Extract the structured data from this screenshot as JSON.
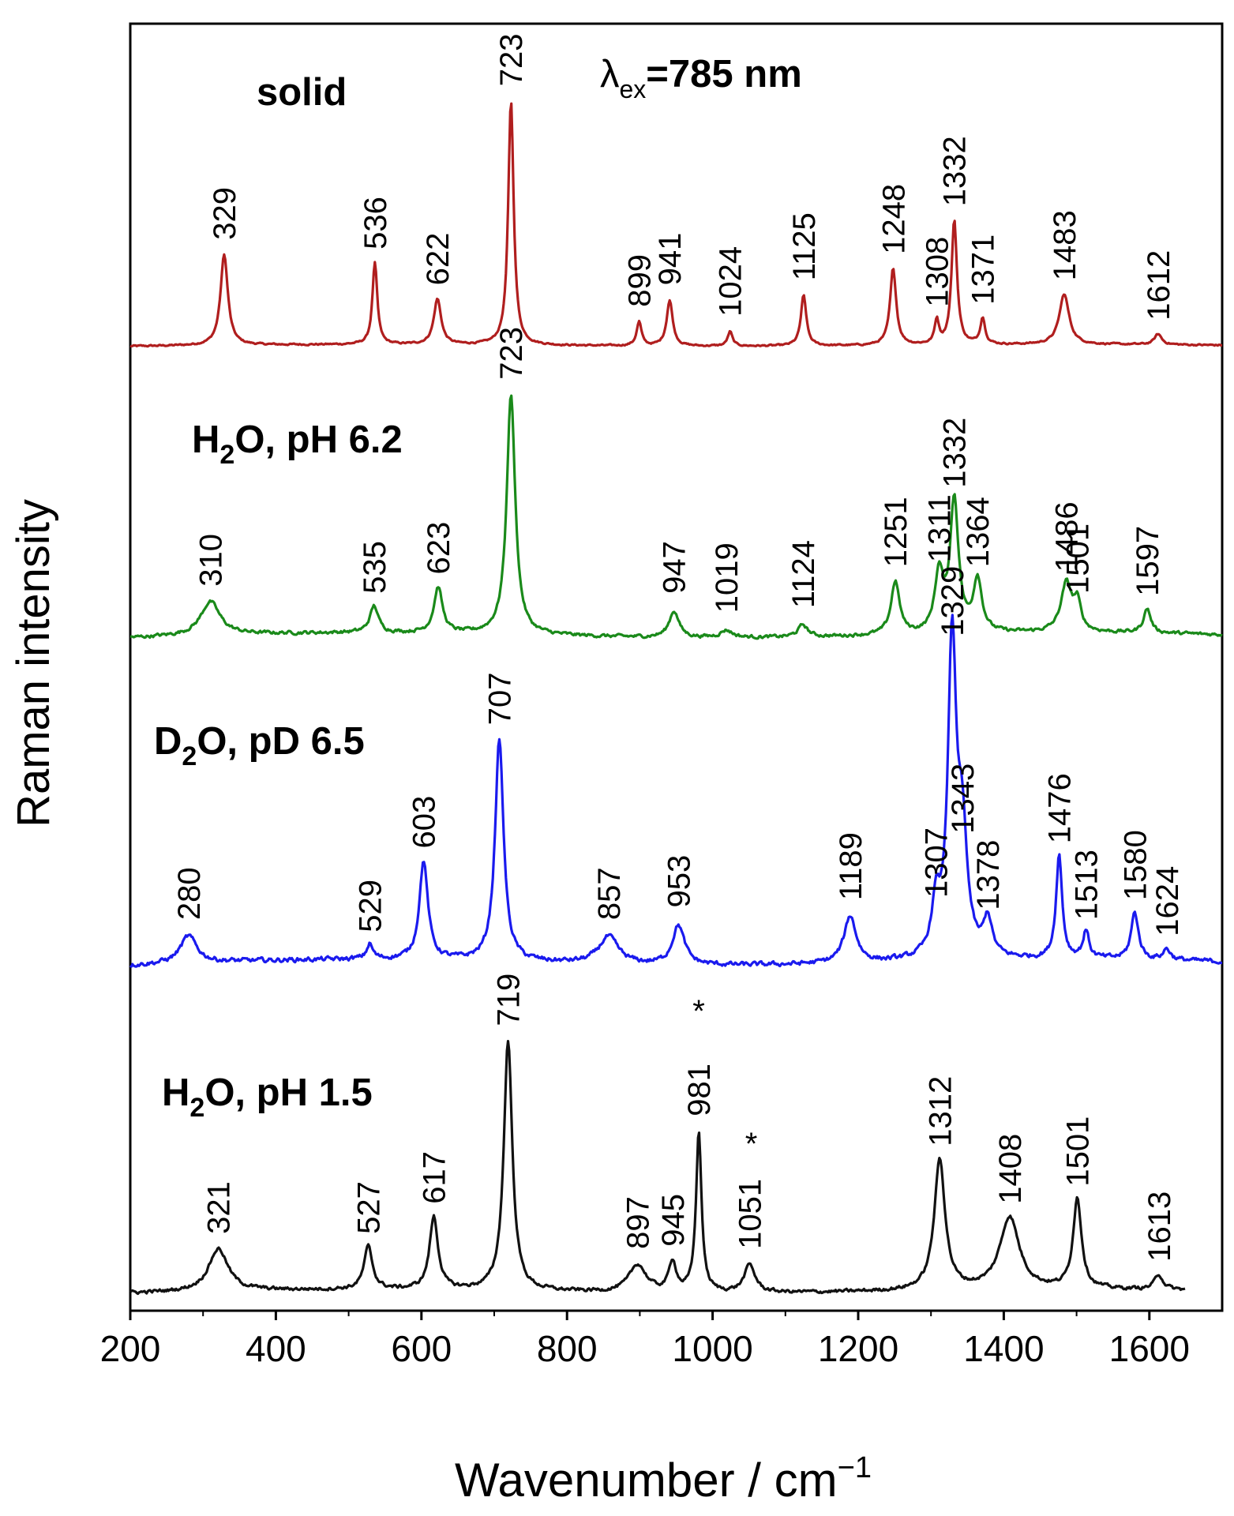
{
  "chart_data": {
    "type": "line",
    "title": "",
    "xlabel": "Wavenumber / cm",
    "xlabel_superscript": "−1",
    "ylabel": "Raman intensity",
    "xlim": [
      200,
      1700
    ],
    "xticks": [
      200,
      400,
      600,
      800,
      1000,
      1200,
      1400,
      1600
    ],
    "excitation": {
      "prefix": "λ",
      "subscript": "ex",
      "value": "=785 nm"
    },
    "series": [
      {
        "name": "solid",
        "label_parts": [
          "solid"
        ],
        "color": "#b01e1e",
        "xmin": 200,
        "xmax": 1700,
        "baseline_level": 0.1,
        "intensity_max": 5.3,
        "noise": 0.03,
        "peaks": [
          {
            "x": 329,
            "h": 1.9,
            "w": 6,
            "label": "329"
          },
          {
            "x": 536,
            "h": 1.7,
            "w": 4,
            "label": "536"
          },
          {
            "x": 622,
            "h": 0.95,
            "w": 6,
            "label": "622"
          },
          {
            "x": 723,
            "h": 5.1,
            "w": 4.5,
            "label": "723"
          },
          {
            "x": 899,
            "h": 0.5,
            "w": 4,
            "label": "899"
          },
          {
            "x": 941,
            "h": 0.95,
            "w": 5,
            "label": "941"
          },
          {
            "x": 1024,
            "h": 0.3,
            "w": 4,
            "label": "1024"
          },
          {
            "x": 1125,
            "h": 1.05,
            "w": 4.5,
            "label": "1125"
          },
          {
            "x": 1248,
            "h": 1.6,
            "w": 5,
            "label": "1248"
          },
          {
            "x": 1308,
            "h": 0.5,
            "w": 3.5,
            "label": "1308"
          },
          {
            "x": 1332,
            "h": 2.6,
            "w": 4.5,
            "label": "1332"
          },
          {
            "x": 1371,
            "h": 0.55,
            "w": 4,
            "label": "1371"
          },
          {
            "x": 1483,
            "h": 1.05,
            "w": 8,
            "label": "1483"
          },
          {
            "x": 1612,
            "h": 0.22,
            "w": 6,
            "label": "1612"
          }
        ]
      },
      {
        "name": "H2O, pH 6.2",
        "label_parts": [
          "H",
          "2",
          "O, pH 6.2"
        ],
        "color": "#1a8a1a",
        "xmin": 200,
        "xmax": 1700,
        "baseline_level": 0.3,
        "intensity_max": 5.3,
        "noise": 0.06,
        "peaks": [
          {
            "x": 310,
            "h": 0.7,
            "w": 16,
            "label": "310"
          },
          {
            "x": 535,
            "h": 0.55,
            "w": 7,
            "label": "535"
          },
          {
            "x": 623,
            "h": 0.95,
            "w": 7,
            "label": "623"
          },
          {
            "x": 723,
            "h": 5.0,
            "w": 7,
            "label": "723"
          },
          {
            "x": 947,
            "h": 0.55,
            "w": 8,
            "label": "947"
          },
          {
            "x": 1019,
            "h": 0.15,
            "w": 10,
            "label": "1019"
          },
          {
            "x": 1124,
            "h": 0.25,
            "w": 8,
            "label": "1124"
          },
          {
            "x": 1251,
            "h": 1.1,
            "w": 7,
            "label": "1251"
          },
          {
            "x": 1311,
            "h": 1.2,
            "w": 7,
            "label": "1311"
          },
          {
            "x": 1332,
            "h": 2.75,
            "w": 7,
            "label": "1332"
          },
          {
            "x": 1364,
            "h": 1.1,
            "w": 7,
            "label": "1364"
          },
          {
            "x": 1486,
            "h": 1.0,
            "w": 9,
            "label": "1486"
          },
          {
            "x": 1501,
            "h": 0.55,
            "w": 6,
            "label": "1501"
          },
          {
            "x": 1597,
            "h": 0.5,
            "w": 6,
            "label": "1597"
          }
        ]
      },
      {
        "name": "D2O, pD 6.5",
        "label_parts": [
          "D",
          "2",
          "O, pD 6.5"
        ],
        "color": "#1a1aee",
        "xmin": 200,
        "xmax": 1700,
        "baseline_level": 0.35,
        "intensity_max": 6.8,
        "noise": 0.08,
        "peaks": [
          {
            "x": 280,
            "h": 0.55,
            "w": 14,
            "label": "280"
          },
          {
            "x": 529,
            "h": 0.3,
            "w": 5,
            "label": "529"
          },
          {
            "x": 603,
            "h": 2.0,
            "w": 7,
            "label": "603"
          },
          {
            "x": 707,
            "h": 4.5,
            "w": 7,
            "label": "707"
          },
          {
            "x": 857,
            "h": 0.55,
            "w": 16,
            "label": "857"
          },
          {
            "x": 953,
            "h": 0.8,
            "w": 10,
            "label": "953"
          },
          {
            "x": 1189,
            "h": 0.95,
            "w": 10,
            "label": "1189"
          },
          {
            "x": 1307,
            "h": 1.0,
            "w": 7,
            "label": "1307"
          },
          {
            "x": 1329,
            "h": 6.3,
            "w": 7,
            "label": "1329"
          },
          {
            "x": 1343,
            "h": 2.3,
            "w": 8,
            "label": "1343"
          },
          {
            "x": 1378,
            "h": 0.75,
            "w": 7,
            "label": "1378"
          },
          {
            "x": 1476,
            "h": 2.1,
            "w": 5,
            "label": "1476"
          },
          {
            "x": 1513,
            "h": 0.55,
            "w": 5,
            "label": "1513"
          },
          {
            "x": 1580,
            "h": 0.95,
            "w": 6,
            "label": "1580"
          },
          {
            "x": 1624,
            "h": 0.22,
            "w": 6,
            "label": "1624"
          }
        ]
      },
      {
        "name": "H2O, pH 1.5",
        "label_parts": [
          "H",
          "2",
          "O, pH 1.5"
        ],
        "color": "#111111",
        "xmin": 200,
        "xmax": 1650,
        "baseline_level": 0.2,
        "intensity_max": 5.2,
        "noise": 0.06,
        "peaks": [
          {
            "x": 321,
            "h": 0.85,
            "w": 16,
            "label": "321"
          },
          {
            "x": 527,
            "h": 0.85,
            "w": 7,
            "label": "527"
          },
          {
            "x": 617,
            "h": 1.45,
            "w": 7,
            "label": "617"
          },
          {
            "x": 719,
            "h": 5.0,
            "w": 7,
            "label": "719"
          },
          {
            "x": 897,
            "h": 0.55,
            "w": 14,
            "label": "897"
          },
          {
            "x": 945,
            "h": 0.6,
            "w": 6,
            "label": "945"
          },
          {
            "x": 981,
            "h": 3.2,
            "w": 4.5,
            "label": "981",
            "marker": "*"
          },
          {
            "x": 1051,
            "h": 0.55,
            "w": 9,
            "label": "1051",
            "marker": "*"
          },
          {
            "x": 1312,
            "h": 2.6,
            "w": 9,
            "label": "1312"
          },
          {
            "x": 1408,
            "h": 1.45,
            "w": 16,
            "label": "1408"
          },
          {
            "x": 1501,
            "h": 1.8,
            "w": 7,
            "label": "1501"
          },
          {
            "x": 1613,
            "h": 0.3,
            "w": 7,
            "label": "1613"
          }
        ]
      }
    ]
  }
}
